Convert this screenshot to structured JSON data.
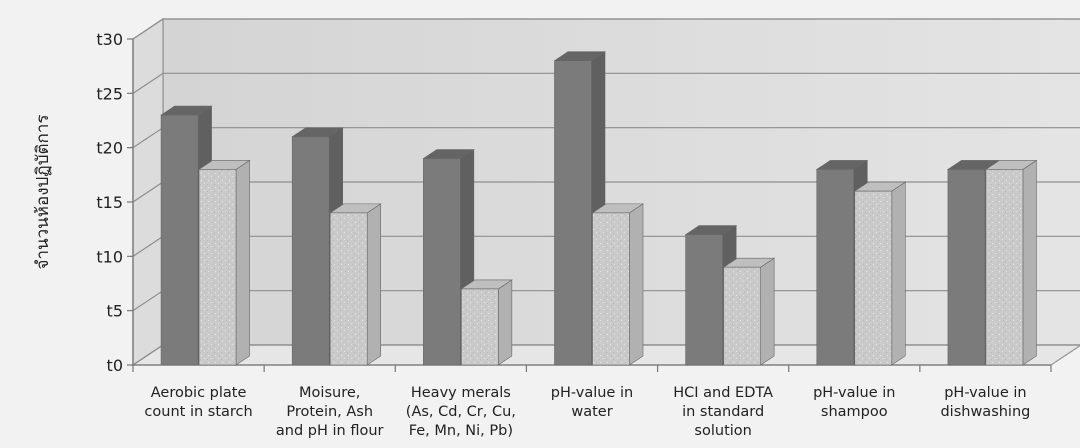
{
  "chart_data": {
    "type": "bar",
    "categories": [
      [
        "Aerobic plate",
        "count in starch"
      ],
      [
        "Moisure,",
        "Protein, Ash",
        "and pH in flour"
      ],
      [
        "Heavy merals",
        "(As, Cd, Cr, Cu,",
        "Fe, Mn, Ni, Pb)"
      ],
      [
        "pH-value in",
        "water"
      ],
      [
        "HCI and EDTA",
        "in standard",
        "solution"
      ],
      [
        "pH-value in",
        "shampoo"
      ],
      [
        "pH-value in",
        "dishwashing"
      ]
    ],
    "series": [
      {
        "values": [
          23,
          21,
          19,
          28,
          12,
          18,
          18
        ],
        "color": "#7b7b7b"
      },
      {
        "values": [
          18,
          14,
          7,
          14,
          9,
          16,
          18
        ],
        "color": "#c9c9c9"
      }
    ],
    "ylim": [
      0,
      30
    ],
    "yticks": [
      0,
      5,
      10,
      15,
      20,
      25,
      30
    ],
    "ytick_labels": [
      "t0",
      "t5",
      "t10",
      "t15",
      "t20",
      "t25",
      "t30"
    ],
    "ylabel": "จำนวนห้องปฏิบัติการ",
    "xlabel": "",
    "grid": true,
    "legend": "none",
    "style": "3d-column"
  }
}
